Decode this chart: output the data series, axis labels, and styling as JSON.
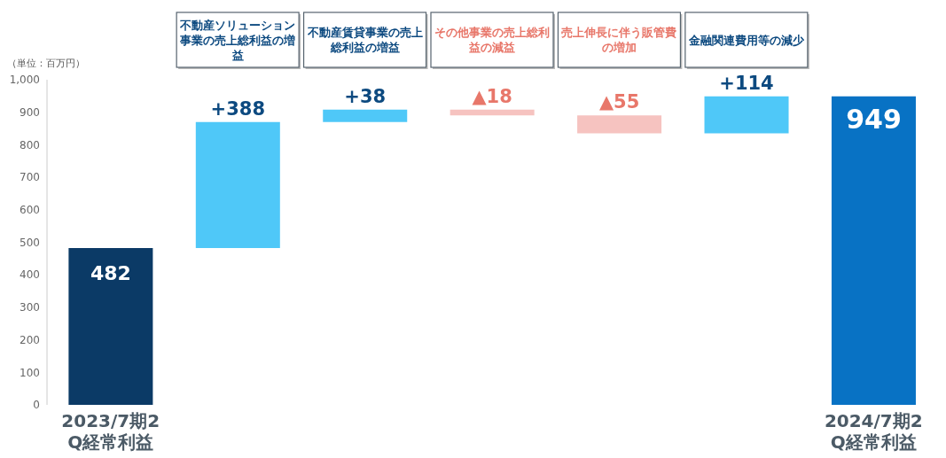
{
  "chart_data": {
    "type": "bar",
    "ylabel": "（単位：百万円）",
    "categories": [
      "2023/7期2Q経常利益",
      "不動産ソリューション事業の売上総利益の増益",
      "不動産賃貸事業の売上総利益の増益",
      "その他事業の売上総利益の減益",
      "売上伸長に伴う販管費の増加",
      "金融関連費用等の減少",
      "2024/7期2Q経常利益"
    ],
    "values": [
      482,
      388,
      38,
      -18,
      -55,
      114,
      949
    ],
    "base": [
      0,
      482,
      870,
      908,
      890,
      835,
      0
    ],
    "colors": [
      "#0b3a66",
      "#4fc8f8",
      "#4fc8f8",
      "#f6c3c0",
      "#f6c3c0",
      "#4fc8f8",
      "#0872c4"
    ],
    "value_labels": [
      "482",
      "+388",
      "+38",
      "▲18",
      "▲55",
      "+114",
      "949"
    ],
    "ylim": [
      0,
      1000
    ],
    "yticks": [
      0,
      100,
      200,
      300,
      400,
      500,
      600,
      700,
      800,
      900,
      {
        "value": 1000,
        "label": "1,000"
      }
    ]
  }
}
